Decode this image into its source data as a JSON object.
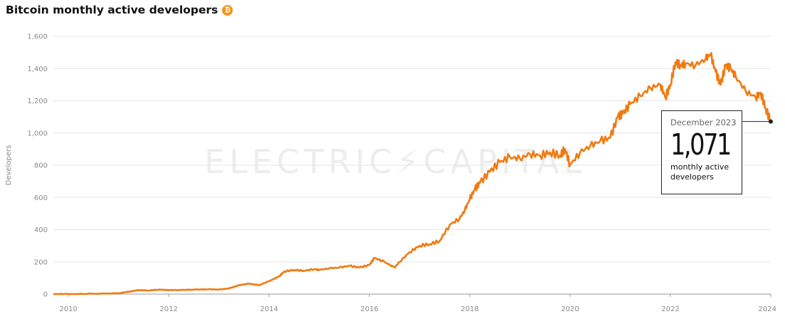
{
  "title": "Bitcoin monthly active developers",
  "title_icon": "bitcoin-icon",
  "watermark": "ELECTRIC⚡CAPITAL",
  "colors": {
    "line": "#f07a10",
    "grid": "#e6e6e6",
    "axis": "#999999"
  },
  "callout": {
    "date": "December 2023",
    "value": "1,071",
    "unit": "monthly active developers"
  },
  "chart_data": {
    "type": "line",
    "ylabel": "Developers",
    "xlabel": "",
    "ylim": [
      0,
      1600
    ],
    "xlim": [
      2009.7,
      2024.0
    ],
    "y_ticks": [
      "0",
      "200",
      "400",
      "600",
      "800",
      "1,000",
      "1,200",
      "1,400",
      "1,600"
    ],
    "x_ticks": [
      "2010",
      "2012",
      "2014",
      "2016",
      "2018",
      "2020",
      "2022",
      "2024"
    ],
    "grid": true,
    "series": [
      {
        "x": [
          2009.7,
          2010.0,
          2010.5,
          2011.0,
          2011.2,
          2011.4,
          2011.6,
          2011.8,
          2012.0,
          2012.2,
          2012.5,
          2012.8,
          2013.0,
          2013.2,
          2013.4,
          2013.6,
          2013.8,
          2014.0,
          2014.1,
          2014.2,
          2014.3,
          2014.5,
          2014.7,
          2014.9,
          2015.0,
          2015.2,
          2015.4,
          2015.6,
          2015.8,
          2016.0,
          2016.1,
          2016.3,
          2016.5,
          2016.6,
          2016.8,
          2017.0,
          2017.2,
          2017.4,
          2017.6,
          2017.8,
          2017.9,
          2018.0,
          2018.1,
          2018.2,
          2018.4,
          2018.6,
          2018.8,
          2019.0,
          2019.2,
          2019.4,
          2019.6,
          2019.8,
          2019.9,
          2020.0,
          2020.2,
          2020.4,
          2020.6,
          2020.8,
          2020.95,
          2021.05,
          2021.2,
          2021.4,
          2021.6,
          2021.8,
          2021.9,
          2022.0,
          2022.1,
          2022.2,
          2022.3,
          2022.5,
          2022.7,
          2022.8,
          2022.9,
          2023.0,
          2023.1,
          2023.2,
          2023.3,
          2023.5,
          2023.7,
          2023.8,
          2023.9,
          2024.0
        ],
        "y": [
          0,
          0,
          2,
          5,
          15,
          25,
          22,
          28,
          25,
          25,
          28,
          30,
          28,
          35,
          55,
          65,
          55,
          80,
          95,
          110,
          140,
          150,
          145,
          155,
          150,
          160,
          165,
          175,
          165,
          180,
          225,
          200,
          165,
          200,
          260,
          300,
          310,
          330,
          430,
          470,
          520,
          590,
          650,
          690,
          760,
          820,
          850,
          840,
          870,
          860,
          880,
          860,
          900,
          800,
          880,
          920,
          950,
          970,
          1100,
          1120,
          1180,
          1230,
          1280,
          1300,
          1220,
          1300,
          1440,
          1420,
          1430,
          1420,
          1460,
          1490,
          1380,
          1300,
          1420,
          1400,
          1350,
          1260,
          1220,
          1250,
          1150,
          1071
        ]
      }
    ],
    "callout_point": {
      "x": 2024.0,
      "y": 1071
    }
  }
}
